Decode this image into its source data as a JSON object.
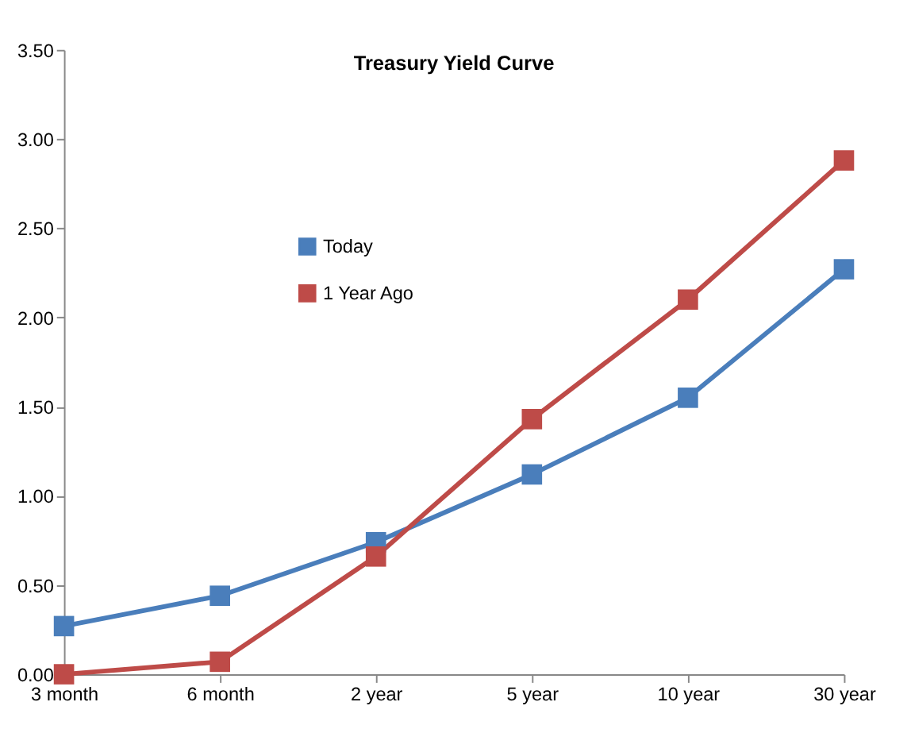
{
  "chart_data": {
    "type": "line",
    "title": "Treasury Yield Curve",
    "categories": [
      "3 month",
      "6 month",
      "2 year",
      "5 year",
      "10 year",
      "30 year"
    ],
    "series": [
      {
        "name": "Today",
        "color": "#4a7ebb",
        "values": [
          0.27,
          0.44,
          0.74,
          1.12,
          1.55,
          2.27
        ]
      },
      {
        "name": "1 Year Ago",
        "color": "#be4b48",
        "values": [
          0.0,
          0.07,
          0.66,
          1.43,
          2.1,
          2.88
        ]
      }
    ],
    "ylim": [
      0,
      3.5
    ],
    "yticks": [
      {
        "value": 0,
        "label": "0.00"
      },
      {
        "value": 0.5,
        "label": "0.50"
      },
      {
        "value": 1,
        "label": "1.00"
      },
      {
        "value": 1.5,
        "label": "1.50"
      },
      {
        "value": 2,
        "label": "2.00"
      },
      {
        "value": 2.5,
        "label": "2.50"
      },
      {
        "value": 3,
        "label": "3.00"
      },
      {
        "value": 3.5,
        "label": "3.50"
      }
    ],
    "marker": "square",
    "grid": false,
    "legend": "top"
  }
}
